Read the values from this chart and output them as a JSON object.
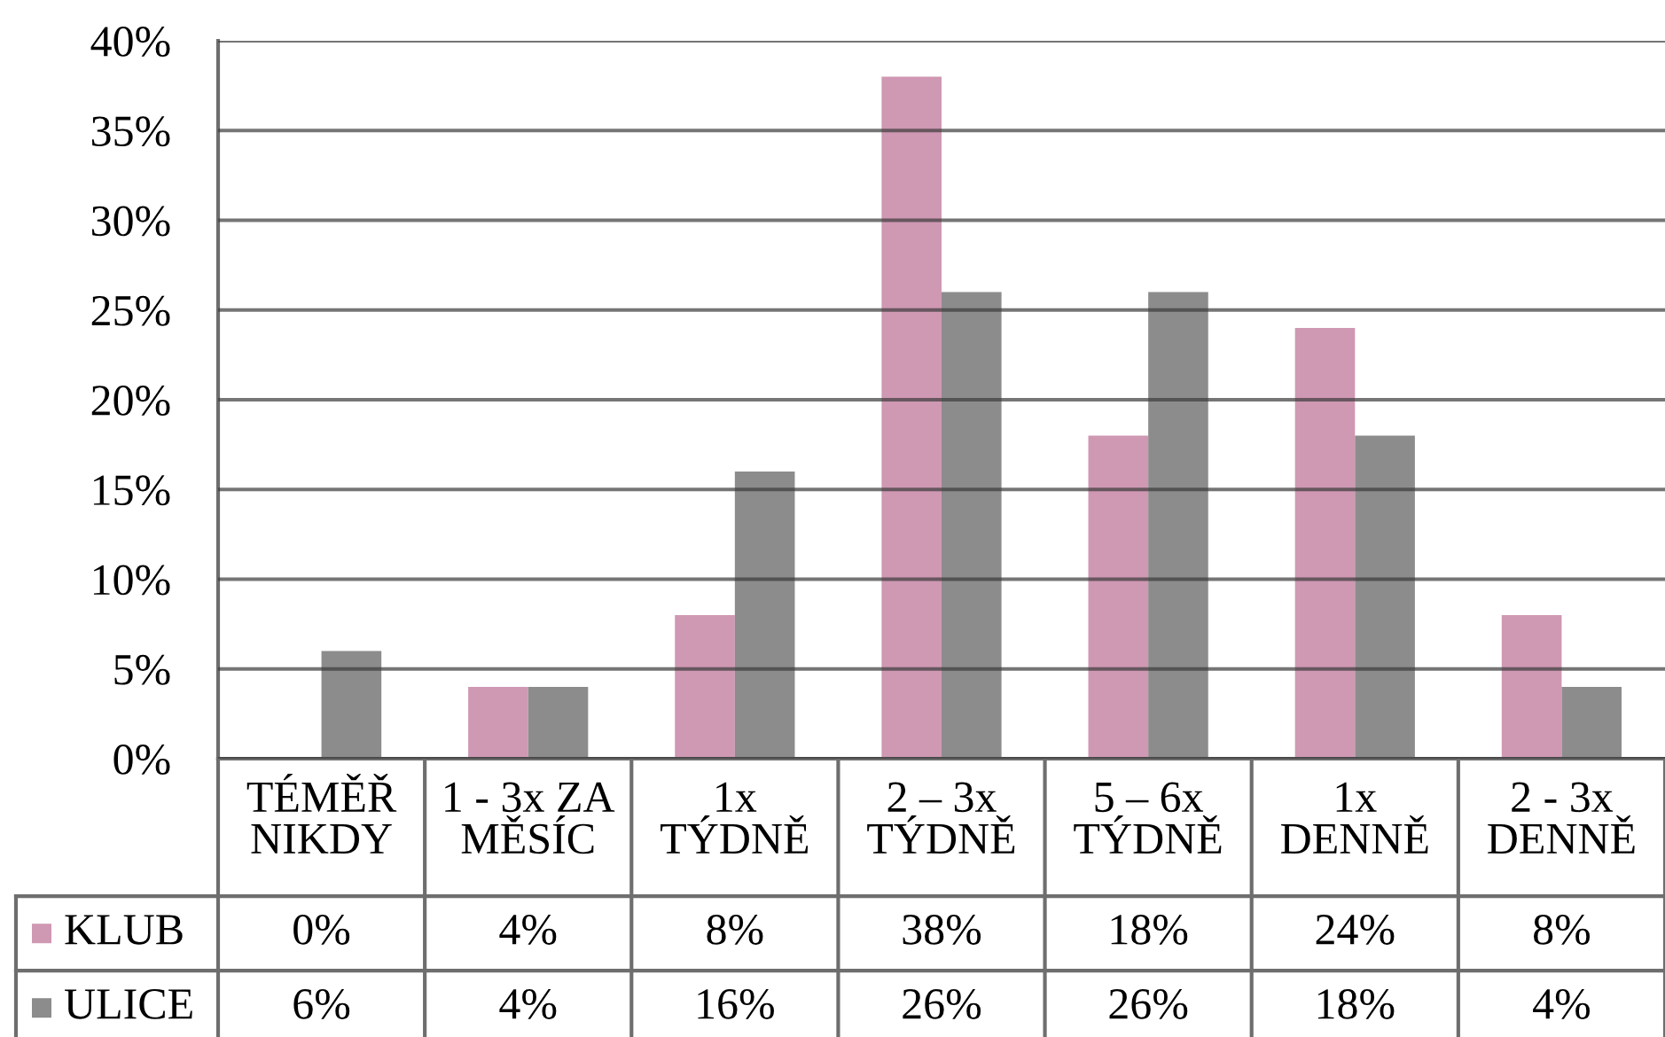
{
  "chart_data": {
    "type": "bar",
    "categories": [
      "TÉMĚŘ\nNIKDY",
      "1 - 3x ZA\nMĚSÍC",
      "1x\nTÝDNĚ",
      "2 – 3x\nTÝDNĚ",
      "5 – 6x\nTÝDNĚ",
      "1x\nDENNĚ",
      "2 - 3x\nDENNĚ"
    ],
    "series": [
      {
        "name": "KLUB",
        "color": "#cf98b3",
        "values": [
          0,
          4,
          8,
          38,
          18,
          24,
          8
        ],
        "value_labels": [
          "0%",
          "4%",
          "8%",
          "38%",
          "18%",
          "24%",
          "8%"
        ]
      },
      {
        "name": "ULICE",
        "color": "#8c8c8c",
        "values": [
          6,
          4,
          16,
          26,
          26,
          18,
          4
        ],
        "value_labels": [
          "6%",
          "4%",
          "16%",
          "26%",
          "26%",
          "18%",
          "4%"
        ]
      }
    ],
    "ylim": [
      0,
      40
    ],
    "yticks": [
      {
        "value": 0,
        "label": "0%"
      },
      {
        "value": 5,
        "label": "5%"
      },
      {
        "value": 10,
        "label": "10%"
      },
      {
        "value": 15,
        "label": "15%"
      },
      {
        "value": 20,
        "label": "20%"
      },
      {
        "value": 25,
        "label": "25%"
      },
      {
        "value": 30,
        "label": "30%"
      },
      {
        "value": 35,
        "label": "35%"
      },
      {
        "value": 40,
        "label": "40%"
      }
    ],
    "grid": "y",
    "legend": "bottom left"
  }
}
